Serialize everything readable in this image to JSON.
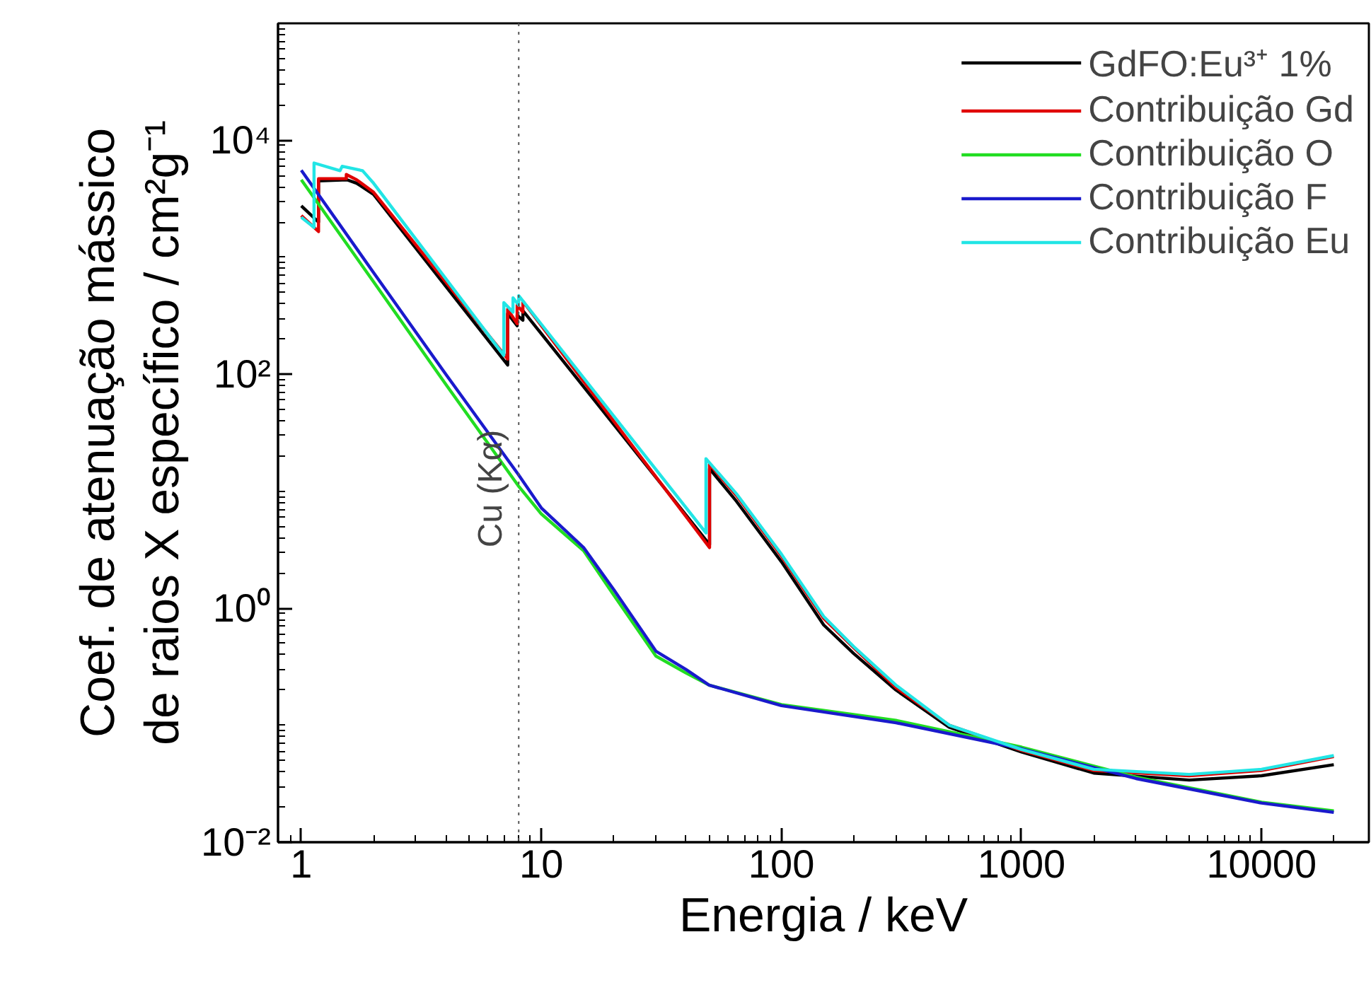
{
  "chart_data": {
    "type": "line",
    "xlabel": "Energia / keV",
    "ylabel": "Coef. de atenuação mássico\nde raios X específico / cm²g⁻¹",
    "log": "xy",
    "grid": false,
    "legend": "top right",
    "marker": "none",
    "line_style": "solid",
    "xlim": [
      0.8,
      28000
    ],
    "ylim": [
      0.01,
      100000
    ],
    "xticks": [
      1,
      10,
      100,
      1000,
      10000
    ],
    "yticks": [
      {
        "value": 0.01,
        "label": "10⁻²"
      },
      {
        "value": 1,
        "label": "10⁰"
      },
      {
        "value": 100,
        "label": "10²"
      },
      {
        "value": 10000,
        "label": "10⁴"
      }
    ],
    "ref_lines": [
      {
        "axis": "x",
        "value": 8.05,
        "label": "Cu (Kα)",
        "line_style": "dotted",
        "color": "#555555"
      }
    ],
    "series": [
      {
        "name": "GdFO:Eu³⁺ 1%",
        "color": "#000000",
        "x": [
          1,
          1.18,
          1.18,
          1.55,
          1.7,
          2,
          7.24,
          7.24,
          7.93,
          7.93,
          8.38,
          8.38,
          50.2,
          50.2,
          65,
          100,
          150,
          200,
          300,
          500,
          1000,
          2000,
          5000,
          10000,
          20000
        ],
        "values": [
          2750,
          2000,
          4500,
          4600,
          4300,
          3450,
          120,
          330,
          260,
          320,
          290,
          350,
          3.5,
          15.6,
          8.2,
          2.5,
          0.72,
          0.41,
          0.2,
          0.096,
          0.059,
          0.039,
          0.034,
          0.037,
          0.046
        ]
      },
      {
        "name": "Contribuição Gd",
        "color": "#e00000",
        "x": [
          1,
          1.18,
          1.18,
          1.54,
          1.54,
          1.7,
          2,
          7.24,
          7.24,
          7.93,
          7.93,
          8.38,
          8.38,
          50.2,
          50.2,
          65,
          100,
          150,
          200,
          300,
          500,
          1000,
          2000,
          5000,
          10000,
          20000
        ],
        "values": [
          2270,
          1660,
          4700,
          4700,
          5100,
          4600,
          3600,
          135,
          360,
          270,
          390,
          340,
          420,
          3.3,
          17,
          9.2,
          2.8,
          0.82,
          0.46,
          0.21,
          0.1,
          0.061,
          0.041,
          0.037,
          0.041,
          0.054
        ]
      },
      {
        "name": "Contribuição O",
        "color": "#22dd22",
        "x": [
          1,
          2,
          4,
          8,
          10,
          15,
          20,
          30,
          40,
          50,
          100,
          300,
          1000,
          3000,
          10000,
          20000
        ],
        "values": [
          4600,
          617,
          82,
          11.2,
          6.4,
          3.1,
          1.3,
          0.39,
          0.28,
          0.22,
          0.15,
          0.11,
          0.065,
          0.036,
          0.022,
          0.0185
        ]
      },
      {
        "name": "Contribuição F",
        "color": "#1a1acc",
        "x": [
          1,
          2,
          4,
          8,
          10,
          15,
          20,
          30,
          40,
          50,
          100,
          300,
          1000,
          3000,
          10000,
          20000
        ],
        "values": [
          5550,
          740,
          100,
          14,
          7.2,
          3.3,
          1.45,
          0.43,
          0.3,
          0.22,
          0.147,
          0.105,
          0.063,
          0.035,
          0.0216,
          0.018
        ]
      },
      {
        "name": "Contribuição Eu",
        "color": "#22e5e5",
        "x": [
          1,
          1.13,
          1.13,
          1.45,
          1.48,
          1.8,
          2,
          6.98,
          6.98,
          7.62,
          7.62,
          8.05,
          8.05,
          48.5,
          48.5,
          65,
          100,
          150,
          200,
          300,
          500,
          1000,
          2000,
          5000,
          10000,
          20000
        ],
        "values": [
          2200,
          1800,
          6400,
          5500,
          6000,
          5500,
          4300,
          145,
          410,
          340,
          450,
          390,
          470,
          4.4,
          19,
          9.5,
          2.9,
          0.85,
          0.47,
          0.22,
          0.1,
          0.062,
          0.042,
          0.038,
          0.042,
          0.055
        ]
      }
    ]
  }
}
